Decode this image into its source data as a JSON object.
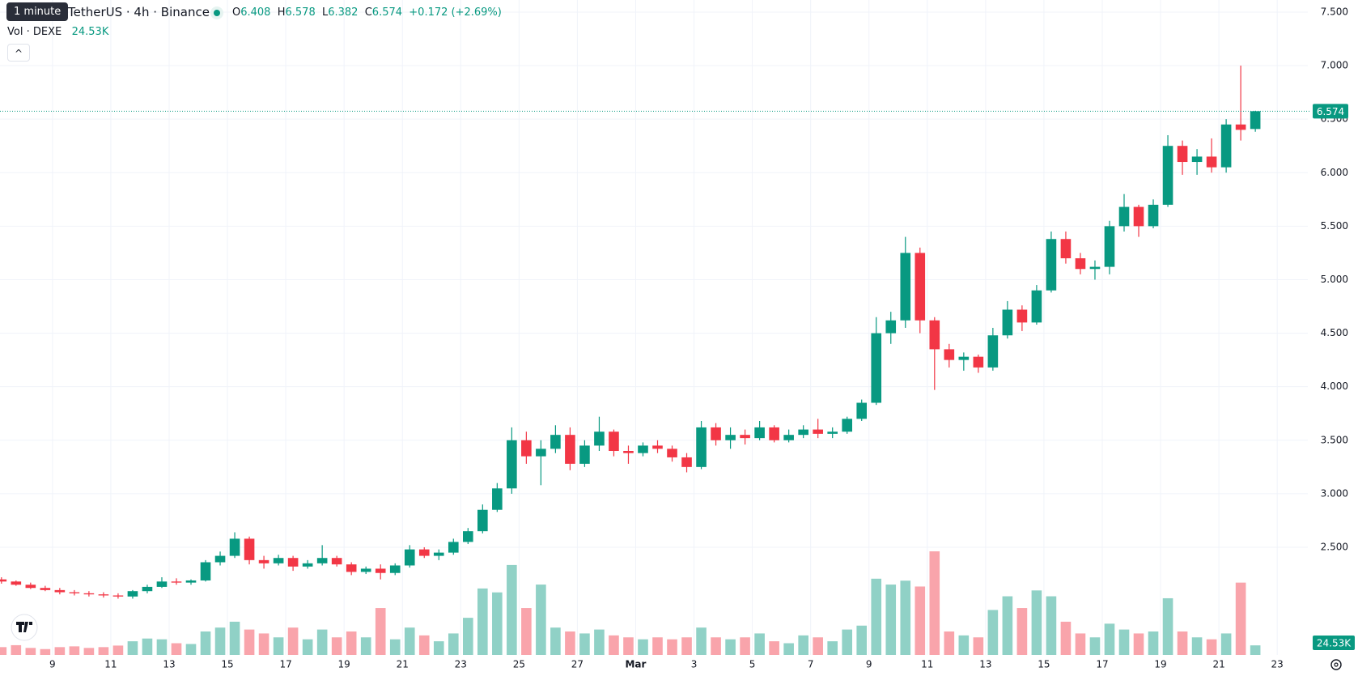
{
  "header": {
    "tooltip": "1 minute",
    "title": "TetherUS · 4h · Binance",
    "ohlc_letters": [
      "O",
      "H",
      "L",
      "C"
    ],
    "change": "+0.172 (+2.69%)",
    "volume_title": "Vol · DEXE",
    "volume_label": "24.53K",
    "button": "^"
  },
  "chart_data": {
    "type": "candlestick",
    "up_color": "#089981",
    "down_color": "#f23645",
    "grid": true,
    "ylim": [
      1.494,
      7.613
    ],
    "yticks": [
      {
        "value": 2.5,
        "label": "2.500"
      },
      {
        "value": 3,
        "label": "3.000"
      },
      {
        "value": 3.5,
        "label": "3.500"
      },
      {
        "value": 4,
        "label": "4.000"
      },
      {
        "value": 4.5,
        "label": "4.500"
      },
      {
        "value": 5,
        "label": "5.000"
      },
      {
        "value": 5.5,
        "label": "5.500"
      },
      {
        "value": 6,
        "label": "6.000"
      },
      {
        "value": 6.5,
        "label": "6.500"
      },
      {
        "value": 7,
        "label": "7.000"
      },
      {
        "value": 7.5,
        "label": "7.500"
      }
    ],
    "xlim": [
      -0.1,
      89.6
    ],
    "xticks": [
      {
        "value": 3.5,
        "label": "9"
      },
      {
        "value": 7.5,
        "label": "11"
      },
      {
        "value": 11.5,
        "label": "13"
      },
      {
        "value": 15.5,
        "label": "15"
      },
      {
        "value": 19.5,
        "label": "17"
      },
      {
        "value": 23.5,
        "label": "19"
      },
      {
        "value": 27.5,
        "label": "21"
      },
      {
        "value": 31.5,
        "label": "23"
      },
      {
        "value": 35.5,
        "label": "25"
      },
      {
        "value": 39.5,
        "label": "27"
      },
      {
        "value": 43.5,
        "label": "Mar"
      },
      {
        "value": 47.5,
        "label": "3"
      },
      {
        "value": 51.5,
        "label": "5"
      },
      {
        "value": 55.5,
        "label": "7"
      },
      {
        "value": 59.5,
        "label": "9"
      },
      {
        "value": 63.5,
        "label": "11"
      },
      {
        "value": 67.5,
        "label": "13"
      },
      {
        "value": 71.5,
        "label": "15"
      },
      {
        "value": 75.5,
        "label": "17"
      },
      {
        "value": 79.5,
        "label": "19"
      },
      {
        "value": 83.5,
        "label": "21"
      },
      {
        "value": 87.5,
        "label": "23"
      }
    ],
    "candles": [
      {
        "o": 2.2,
        "h": 2.22,
        "l": 2.16,
        "c": 2.18,
        "v": 20
      },
      {
        "o": 2.18,
        "h": 2.19,
        "l": 2.14,
        "c": 2.15,
        "v": 25
      },
      {
        "o": 2.15,
        "h": 2.17,
        "l": 2.11,
        "c": 2.12,
        "v": 18
      },
      {
        "o": 2.12,
        "h": 2.14,
        "l": 2.09,
        "c": 2.1,
        "v": 15
      },
      {
        "o": 2.1,
        "h": 2.12,
        "l": 2.06,
        "c": 2.08,
        "v": 20
      },
      {
        "o": 2.08,
        "h": 2.1,
        "l": 2.05,
        "c": 2.07,
        "v": 22
      },
      {
        "o": 2.07,
        "h": 2.09,
        "l": 2.04,
        "c": 2.06,
        "v": 18
      },
      {
        "o": 2.06,
        "h": 2.08,
        "l": 2.03,
        "c": 2.05,
        "v": 20
      },
      {
        "o": 2.05,
        "h": 2.07,
        "l": 2.02,
        "c": 2.04,
        "v": 24
      },
      {
        "o": 2.04,
        "h": 2.1,
        "l": 2.02,
        "c": 2.09,
        "v": 35
      },
      {
        "o": 2.09,
        "h": 2.15,
        "l": 2.07,
        "c": 2.13,
        "v": 42
      },
      {
        "o": 2.13,
        "h": 2.22,
        "l": 2.12,
        "c": 2.18,
        "v": 40
      },
      {
        "o": 2.18,
        "h": 2.21,
        "l": 2.15,
        "c": 2.17,
        "v": 30
      },
      {
        "o": 2.17,
        "h": 2.2,
        "l": 2.15,
        "c": 2.19,
        "v": 28
      },
      {
        "o": 2.19,
        "h": 2.38,
        "l": 2.18,
        "c": 2.36,
        "v": 60
      },
      {
        "o": 2.36,
        "h": 2.46,
        "l": 2.33,
        "c": 2.42,
        "v": 70
      },
      {
        "o": 2.42,
        "h": 2.64,
        "l": 2.4,
        "c": 2.58,
        "v": 85
      },
      {
        "o": 2.58,
        "h": 2.6,
        "l": 2.34,
        "c": 2.38,
        "v": 65
      },
      {
        "o": 2.38,
        "h": 2.42,
        "l": 2.3,
        "c": 2.35,
        "v": 55
      },
      {
        "o": 2.35,
        "h": 2.43,
        "l": 2.33,
        "c": 2.4,
        "v": 45
      },
      {
        "o": 2.4,
        "h": 2.42,
        "l": 2.28,
        "c": 2.32,
        "v": 70
      },
      {
        "o": 2.32,
        "h": 2.38,
        "l": 2.3,
        "c": 2.35,
        "v": 40
      },
      {
        "o": 2.35,
        "h": 2.52,
        "l": 2.33,
        "c": 2.4,
        "v": 65
      },
      {
        "o": 2.4,
        "h": 2.42,
        "l": 2.32,
        "c": 2.34,
        "v": 45
      },
      {
        "o": 2.34,
        "h": 2.36,
        "l": 2.24,
        "c": 2.27,
        "v": 60
      },
      {
        "o": 2.27,
        "h": 2.32,
        "l": 2.25,
        "c": 2.3,
        "v": 45
      },
      {
        "o": 2.3,
        "h": 2.34,
        "l": 2.2,
        "c": 2.26,
        "v": 120
      },
      {
        "o": 2.26,
        "h": 2.35,
        "l": 2.24,
        "c": 2.33,
        "v": 40
      },
      {
        "o": 2.33,
        "h": 2.52,
        "l": 2.31,
        "c": 2.48,
        "v": 70
      },
      {
        "o": 2.48,
        "h": 2.5,
        "l": 2.4,
        "c": 2.42,
        "v": 50
      },
      {
        "o": 2.42,
        "h": 2.48,
        "l": 2.38,
        "c": 2.45,
        "v": 35
      },
      {
        "o": 2.45,
        "h": 2.58,
        "l": 2.43,
        "c": 2.55,
        "v": 55
      },
      {
        "o": 2.55,
        "h": 2.68,
        "l": 2.53,
        "c": 2.65,
        "v": 95
      },
      {
        "o": 2.65,
        "h": 2.9,
        "l": 2.63,
        "c": 2.85,
        "v": 170
      },
      {
        "o": 2.85,
        "h": 3.1,
        "l": 2.83,
        "c": 3.05,
        "v": 160
      },
      {
        "o": 3.05,
        "h": 3.62,
        "l": 3.0,
        "c": 3.5,
        "v": 230
      },
      {
        "o": 3.5,
        "h": 3.58,
        "l": 3.28,
        "c": 3.35,
        "v": 120
      },
      {
        "o": 3.35,
        "h": 3.5,
        "l": 3.08,
        "c": 3.42,
        "v": 180
      },
      {
        "o": 3.42,
        "h": 3.64,
        "l": 3.38,
        "c": 3.55,
        "v": 70
      },
      {
        "o": 3.55,
        "h": 3.62,
        "l": 3.22,
        "c": 3.28,
        "v": 60
      },
      {
        "o": 3.28,
        "h": 3.5,
        "l": 3.25,
        "c": 3.45,
        "v": 55
      },
      {
        "o": 3.45,
        "h": 3.72,
        "l": 3.4,
        "c": 3.58,
        "v": 65
      },
      {
        "o": 3.58,
        "h": 3.6,
        "l": 3.35,
        "c": 3.4,
        "v": 50
      },
      {
        "o": 3.4,
        "h": 3.45,
        "l": 3.28,
        "c": 3.38,
        "v": 45
      },
      {
        "o": 3.38,
        "h": 3.48,
        "l": 3.35,
        "c": 3.45,
        "v": 40
      },
      {
        "o": 3.45,
        "h": 3.5,
        "l": 3.38,
        "c": 3.42,
        "v": 45
      },
      {
        "o": 3.42,
        "h": 3.45,
        "l": 3.3,
        "c": 3.34,
        "v": 40
      },
      {
        "o": 3.34,
        "h": 3.38,
        "l": 3.2,
        "c": 3.25,
        "v": 45
      },
      {
        "o": 3.25,
        "h": 3.68,
        "l": 3.23,
        "c": 3.62,
        "v": 70
      },
      {
        "o": 3.62,
        "h": 3.66,
        "l": 3.45,
        "c": 3.5,
        "v": 45
      },
      {
        "o": 3.5,
        "h": 3.62,
        "l": 3.42,
        "c": 3.55,
        "v": 40
      },
      {
        "o": 3.55,
        "h": 3.6,
        "l": 3.46,
        "c": 3.52,
        "v": 45
      },
      {
        "o": 3.52,
        "h": 3.68,
        "l": 3.5,
        "c": 3.62,
        "v": 55
      },
      {
        "o": 3.62,
        "h": 3.64,
        "l": 3.48,
        "c": 3.5,
        "v": 35
      },
      {
        "o": 3.5,
        "h": 3.6,
        "l": 3.48,
        "c": 3.55,
        "v": 30
      },
      {
        "o": 3.55,
        "h": 3.64,
        "l": 3.52,
        "c": 3.6,
        "v": 50
      },
      {
        "o": 3.6,
        "h": 3.7,
        "l": 3.52,
        "c": 3.56,
        "v": 45
      },
      {
        "o": 3.56,
        "h": 3.62,
        "l": 3.52,
        "c": 3.58,
        "v": 35
      },
      {
        "o": 3.58,
        "h": 3.72,
        "l": 3.56,
        "c": 3.7,
        "v": 65
      },
      {
        "o": 3.7,
        "h": 3.88,
        "l": 3.68,
        "c": 3.85,
        "v": 75
      },
      {
        "o": 3.85,
        "h": 4.65,
        "l": 3.83,
        "c": 4.5,
        "v": 195
      },
      {
        "o": 4.5,
        "h": 4.7,
        "l": 4.4,
        "c": 4.62,
        "v": 180
      },
      {
        "o": 4.62,
        "h": 5.4,
        "l": 4.55,
        "c": 5.25,
        "v": 190
      },
      {
        "o": 5.25,
        "h": 5.3,
        "l": 4.5,
        "c": 4.62,
        "v": 175
      },
      {
        "o": 4.62,
        "h": 4.65,
        "l": 3.97,
        "c": 4.35,
        "v": 265
      },
      {
        "o": 4.35,
        "h": 4.4,
        "l": 4.18,
        "c": 4.25,
        "v": 60
      },
      {
        "o": 4.25,
        "h": 4.32,
        "l": 4.15,
        "c": 4.28,
        "v": 50
      },
      {
        "o": 4.28,
        "h": 4.3,
        "l": 4.13,
        "c": 4.18,
        "v": 45
      },
      {
        "o": 4.18,
        "h": 4.55,
        "l": 4.15,
        "c": 4.48,
        "v": 115
      },
      {
        "o": 4.48,
        "h": 4.8,
        "l": 4.45,
        "c": 4.72,
        "v": 150
      },
      {
        "o": 4.72,
        "h": 4.76,
        "l": 4.52,
        "c": 4.6,
        "v": 120
      },
      {
        "o": 4.6,
        "h": 4.95,
        "l": 4.58,
        "c": 4.9,
        "v": 165
      },
      {
        "o": 4.9,
        "h": 5.45,
        "l": 4.88,
        "c": 5.38,
        "v": 150
      },
      {
        "o": 5.38,
        "h": 5.45,
        "l": 5.15,
        "c": 5.2,
        "v": 85
      },
      {
        "o": 5.2,
        "h": 5.25,
        "l": 5.05,
        "c": 5.1,
        "v": 55
      },
      {
        "o": 5.1,
        "h": 5.18,
        "l": 5.0,
        "c": 5.12,
        "v": 45
      },
      {
        "o": 5.12,
        "h": 5.55,
        "l": 5.05,
        "c": 5.5,
        "v": 80
      },
      {
        "o": 5.5,
        "h": 5.8,
        "l": 5.45,
        "c": 5.68,
        "v": 65
      },
      {
        "o": 5.68,
        "h": 5.7,
        "l": 5.4,
        "c": 5.5,
        "v": 55
      },
      {
        "o": 5.5,
        "h": 5.75,
        "l": 5.48,
        "c": 5.7,
        "v": 60
      },
      {
        "o": 5.7,
        "h": 6.35,
        "l": 5.68,
        "c": 6.25,
        "v": 145
      },
      {
        "o": 6.25,
        "h": 6.3,
        "l": 5.98,
        "c": 6.1,
        "v": 60
      },
      {
        "o": 6.1,
        "h": 6.22,
        "l": 5.98,
        "c": 6.15,
        "v": 45
      },
      {
        "o": 6.15,
        "h": 6.32,
        "l": 6.0,
        "c": 6.05,
        "v": 40
      },
      {
        "o": 6.05,
        "h": 6.5,
        "l": 6.0,
        "c": 6.45,
        "v": 55
      },
      {
        "o": 6.45,
        "h": 7.0,
        "l": 6.3,
        "c": 6.4,
        "v": 185
      },
      {
        "o": 6.408,
        "h": 6.578,
        "l": 6.382,
        "c": 6.574,
        "v": 24.53
      }
    ]
  }
}
